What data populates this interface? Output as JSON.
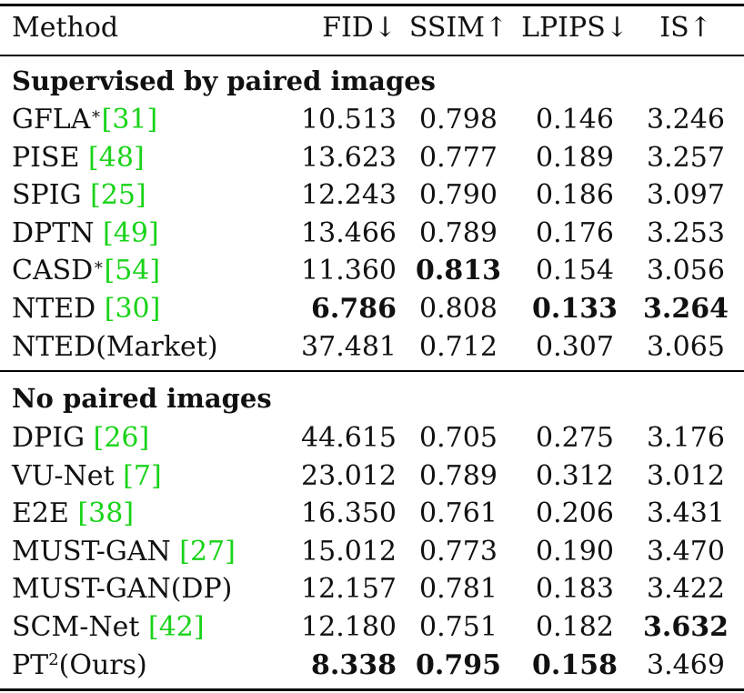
{
  "headers": {
    "method": "Method",
    "fid": "FID↓",
    "ssim": "SSIM↑",
    "lpips": "LPIPS↓",
    "is": "IS↑"
  },
  "section_supervised": "Supervised by paired images",
  "section_unpaired": "No paired images",
  "supervised_rows": [
    {
      "method": "GFLA",
      "mark": "∗",
      "cite_open": "[",
      "cite": "31",
      "cite_close": "]",
      "fid": "10.513",
      "ssim": "0.798",
      "lpips": "0.146",
      "is": "3.246"
    },
    {
      "method": "PISE ",
      "mark": "",
      "cite_open": "[",
      "cite": "48",
      "cite_close": "]",
      "fid": "13.623",
      "ssim": "0.777",
      "lpips": "0.189",
      "is": "3.257"
    },
    {
      "method": "SPIG ",
      "mark": "",
      "cite_open": "[",
      "cite": "25",
      "cite_close": "]",
      "fid": "12.243",
      "ssim": "0.790",
      "lpips": "0.186",
      "is": "3.097"
    },
    {
      "method": "DPTN ",
      "mark": "",
      "cite_open": "[",
      "cite": "49",
      "cite_close": "]",
      "fid": "13.466",
      "ssim": "0.789",
      "lpips": "0.176",
      "is": "3.253"
    },
    {
      "method": "CASD",
      "mark": "∗",
      "cite_open": "[",
      "cite": "54",
      "cite_close": "]",
      "fid": "11.360",
      "ssim": "0.813",
      "lpips": "0.154",
      "is": "3.056"
    },
    {
      "method": "NTED ",
      "mark": "",
      "cite_open": "[",
      "cite": "30",
      "cite_close": "]",
      "fid": "6.786",
      "ssim": "0.808",
      "lpips": "0.133",
      "is": "3.264"
    },
    {
      "method": "NTED(Market)",
      "mark": "",
      "cite_open": "",
      "cite": "",
      "cite_close": "",
      "fid": "37.481",
      "ssim": "0.712",
      "lpips": "0.307",
      "is": "3.065"
    }
  ],
  "unpaired_rows": [
    {
      "method": "DPIG ",
      "mark": "",
      "cite_open": "[",
      "cite": "26",
      "cite_close": "]",
      "fid": "44.615",
      "ssim": "0.705",
      "lpips": "0.275",
      "is": "3.176"
    },
    {
      "method": "VU-Net ",
      "mark": "",
      "cite_open": "[",
      "cite": "7",
      "cite_close": "]",
      "fid": "23.012",
      "ssim": "0.789",
      "lpips": "0.312",
      "is": "3.012"
    },
    {
      "method": "E2E ",
      "mark": "",
      "cite_open": "[",
      "cite": "38",
      "cite_close": "]",
      "fid": "16.350",
      "ssim": "0.761",
      "lpips": "0.206",
      "is": "3.431"
    },
    {
      "method": "MUST-GAN ",
      "mark": "",
      "cite_open": "[",
      "cite": "27",
      "cite_close": "]",
      "fid": "15.012",
      "ssim": "0.773",
      "lpips": "0.190",
      "is": "3.470"
    },
    {
      "method": "MUST-GAN(DP)",
      "mark": "",
      "cite_open": "",
      "cite": "",
      "cite_close": "",
      "fid": "12.157",
      "ssim": "0.781",
      "lpips": "0.183",
      "is": "3.422"
    },
    {
      "method": "SCM-Net ",
      "mark": "",
      "cite_open": "[",
      "cite": "42",
      "cite_close": "]",
      "fid": "12.180",
      "ssim": "0.751",
      "lpips": "0.182",
      "is": "3.632"
    },
    {
      "method": "PT",
      "mark": "2",
      "cite_open": "",
      "cite": "",
      "cite_close": "",
      "suffix": "(Ours)",
      "fid": "8.338",
      "ssim": "0.795",
      "lpips": "0.158",
      "is": "3.469"
    }
  ],
  "colors": {
    "citation": "#19d319",
    "text": "#111111",
    "rule": "#000000"
  }
}
